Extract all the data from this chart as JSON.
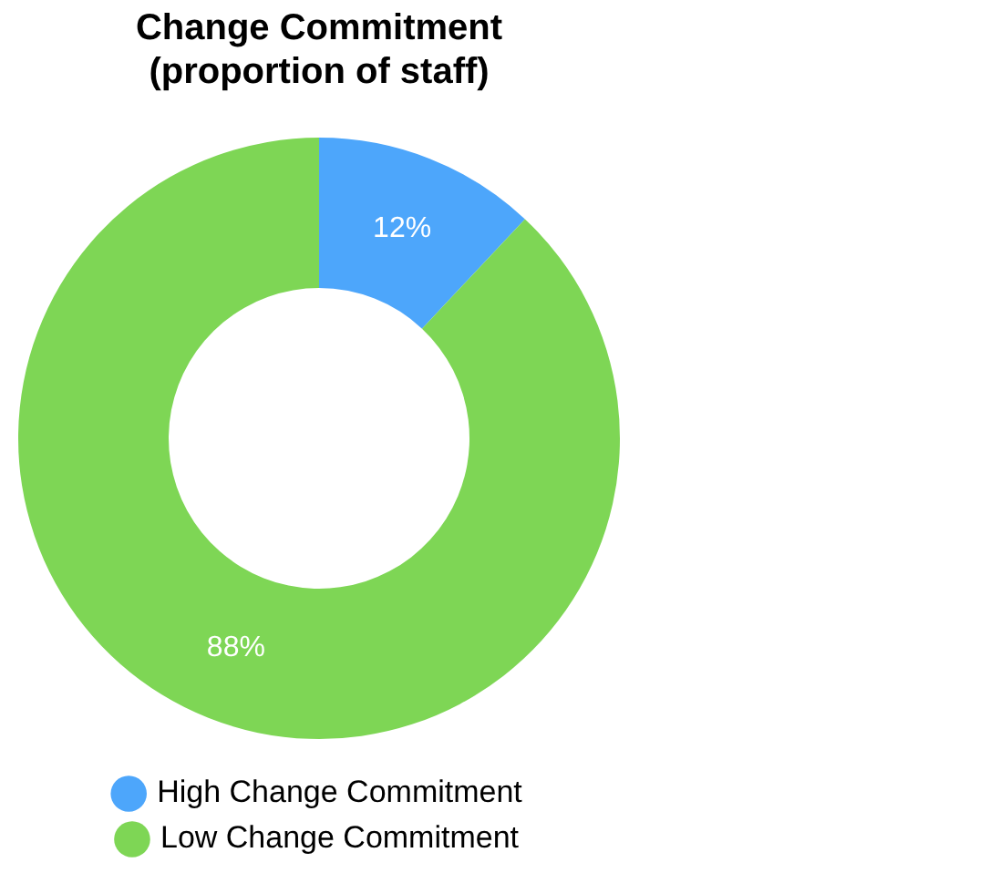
{
  "chart_data": {
    "type": "donut",
    "title": "Change Commitment\n(proportion of staff)",
    "categories": [
      "High Change Commitment",
      "Low Change Commitment"
    ],
    "values": [
      12,
      88
    ],
    "colors": [
      "#4da6fb",
      "#7ed655"
    ],
    "value_labels": [
      "12%",
      "88%"
    ],
    "legend": "bottom"
  }
}
